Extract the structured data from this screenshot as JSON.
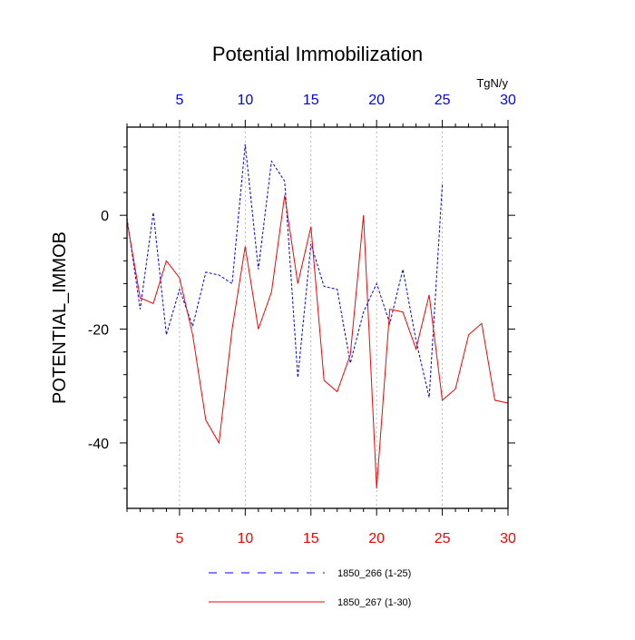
{
  "chart_data": {
    "type": "line",
    "title": "Potential Immobilization",
    "ylabel": "POTENTIAL_IMMOB",
    "units": "TgN/y",
    "xlim": [
      1,
      30
    ],
    "ylim": [
      -51.5,
      15.5
    ],
    "bottom_x_ticks": [
      5,
      10,
      15,
      20,
      25,
      30
    ],
    "top_x_ticks": [
      5,
      10,
      15,
      20,
      25,
      30
    ],
    "y_ticks": [
      0,
      -20,
      -40
    ],
    "gridlines_x": [
      5,
      10,
      15,
      20,
      25
    ],
    "series": [
      {
        "name": "1850_266 (1-25)",
        "color": "#0000ff",
        "style": "dashed",
        "x": [
          1,
          2,
          3,
          4,
          5,
          6,
          7,
          8,
          9,
          10,
          11,
          12,
          13,
          14,
          15,
          16,
          17,
          18,
          19,
          20,
          21,
          22,
          23,
          24,
          25
        ],
        "values": [
          -0.5,
          -16.5,
          0.5,
          -21,
          -13,
          -19.5,
          -10,
          -10.5,
          -12,
          12.5,
          -9.5,
          9.5,
          6,
          -28.5,
          -5,
          -12.5,
          -13,
          -26,
          -17,
          -12,
          -19,
          -9.5,
          -22,
          -32,
          5.5
        ]
      },
      {
        "name": "1850_267 (1-30)",
        "color": "#ff0000",
        "style": "solid",
        "x": [
          1,
          2,
          3,
          4,
          5,
          6,
          7,
          8,
          9,
          10,
          11,
          12,
          13,
          14,
          15,
          16,
          17,
          18,
          19,
          20,
          21,
          22,
          23,
          24,
          25,
          26,
          27,
          28,
          29,
          30
        ],
        "values": [
          -1,
          -14.5,
          -15.5,
          -8,
          -11,
          -21,
          -36,
          -40,
          -20,
          -5.5,
          -20,
          -13.5,
          3.5,
          -12,
          -2,
          -29,
          -31,
          -24.5,
          0,
          -48,
          -16.5,
          -17,
          -23.5,
          -14,
          -32.5,
          -30.5,
          -21,
          -19,
          -32.5,
          -33
        ]
      }
    ]
  }
}
